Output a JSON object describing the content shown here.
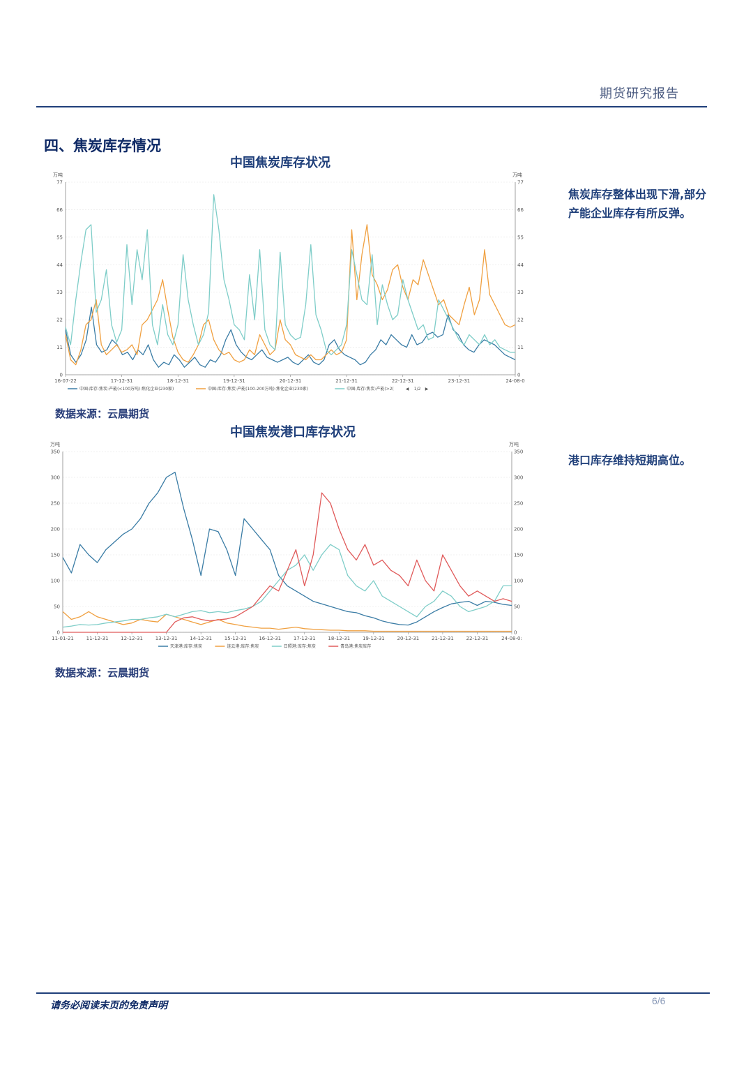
{
  "header": {
    "title": "期货研究报告"
  },
  "section": {
    "title": "四、焦炭库存情况"
  },
  "chart1": {
    "title": "中国焦炭库存状况",
    "source": "数据来源：云晨期货",
    "commentary": "焦炭库存整体出现下滑,部分产能企业库存有所反弹。",
    "pager": "1/2"
  },
  "chart2": {
    "title": "中国焦炭港口库存状况",
    "source": "数据来源：云晨期货",
    "commentary": "港口库存维持短期高位。"
  },
  "footer": {
    "disclaimer": "请务必阅读末页的免责声明",
    "page": "6/6"
  },
  "colors": {
    "blue": "#3a7ca5",
    "orange": "#f0a040",
    "teal": "#7ecdc8",
    "red": "#e05a5a"
  },
  "chart_data": [
    {
      "type": "line",
      "unit": "万吨",
      "ylim": [
        0,
        77
      ],
      "yticks": [
        0,
        11,
        22,
        33,
        44,
        55,
        66,
        77
      ],
      "xticks": [
        "16-07-22",
        "17-12-31",
        "18-12-31",
        "19-12-31",
        "20-12-31",
        "21-12-31",
        "22-12-31",
        "23-12-31",
        "24-08-0"
      ],
      "legend": [
        "中国:库存:焦炭:产能(<100万吨):焦化企业(230家)",
        "中国:库存:焦炭:产能(100-200万吨):焦化企业(230家)",
        "中国:库存:焦炭:产能(>2("
      ],
      "grid": true,
      "legend_position": "bottom",
      "series": [
        {
          "values": [
            18,
            8,
            5,
            8,
            14,
            27,
            12,
            9,
            10,
            14,
            12,
            8,
            9,
            6,
            10,
            8,
            12,
            6,
            3,
            5,
            4,
            8,
            6,
            3,
            5,
            7,
            4,
            3,
            6,
            5,
            8,
            14,
            18,
            12,
            9,
            7,
            6,
            8,
            10,
            7,
            6,
            5,
            6,
            7,
            5,
            4,
            6,
            8,
            5,
            4,
            6,
            12,
            14,
            10,
            8,
            7,
            6,
            4,
            5,
            8,
            10,
            14,
            12,
            16,
            14,
            12,
            11,
            16,
            12,
            13,
            16,
            17,
            15,
            16,
            24,
            18,
            16,
            12,
            10,
            9,
            12,
            14,
            13,
            12,
            10,
            8,
            7,
            6
          ]
        },
        {
          "values": [
            16,
            6,
            4,
            10,
            20,
            22,
            30,
            12,
            8,
            10,
            12,
            9,
            10,
            12,
            8,
            20,
            22,
            26,
            30,
            38,
            26,
            15,
            9,
            6,
            5,
            8,
            12,
            20,
            22,
            14,
            10,
            8,
            9,
            6,
            5,
            6,
            10,
            8,
            16,
            12,
            8,
            10,
            22,
            14,
            12,
            8,
            7,
            6,
            8,
            6,
            6,
            8,
            10,
            8,
            9,
            14,
            58,
            30,
            48,
            60,
            40,
            36,
            30,
            34,
            42,
            44,
            35,
            30,
            38,
            36,
            46,
            40,
            34,
            28,
            30,
            24,
            22,
            20,
            28,
            35,
            24,
            30,
            50,
            32,
            28,
            24,
            20,
            19,
            20
          ]
        },
        {
          "values": [
            19,
            12,
            30,
            45,
            58,
            60,
            25,
            30,
            42,
            20,
            13,
            18,
            52,
            28,
            50,
            38,
            58,
            20,
            12,
            28,
            16,
            12,
            20,
            48,
            30,
            20,
            12,
            16,
            25,
            72,
            58,
            38,
            30,
            20,
            18,
            14,
            40,
            22,
            50,
            18,
            12,
            10,
            49,
            20,
            16,
            14,
            15,
            28,
            52,
            24,
            18,
            10,
            8,
            10,
            12,
            20,
            50,
            40,
            30,
            28,
            48,
            20,
            36,
            28,
            22,
            24,
            38,
            30,
            24,
            18,
            20,
            14,
            15,
            30,
            26,
            22,
            18,
            14,
            12,
            16,
            14,
            12,
            16,
            12,
            14,
            11,
            10,
            9,
            9
          ]
        }
      ]
    },
    {
      "type": "line",
      "unit": "万吨",
      "ylim": [
        0,
        350
      ],
      "yticks": [
        0,
        50,
        100,
        150,
        200,
        250,
        300,
        350
      ],
      "xticks": [
        "11-01-21",
        "11-12-31",
        "12-12-31",
        "13-12-31",
        "14-12-31",
        "15-12-31",
        "16-12-31",
        "17-12-31",
        "18-12-31",
        "19-12-31",
        "20-12-31",
        "21-12-31",
        "22-12-31",
        "24-08-0:"
      ],
      "legend": [
        "天津港:库存:焦炭",
        "连云港:库存:焦炭",
        "日照港:库存:焦炭",
        "青岛港:焦炭库存"
      ],
      "grid": true,
      "legend_position": "bottom",
      "series": [
        {
          "values": [
            145,
            115,
            170,
            150,
            135,
            160,
            175,
            190,
            200,
            220,
            250,
            270,
            300,
            310,
            240,
            180,
            110,
            200,
            195,
            160,
            110,
            220,
            200,
            180,
            160,
            110,
            90,
            80,
            70,
            60,
            55,
            50,
            45,
            40,
            38,
            32,
            28,
            22,
            18,
            15,
            14,
            20,
            30,
            40,
            48,
            55,
            58,
            60,
            52,
            60,
            58,
            54,
            52
          ]
        },
        {
          "values": [
            40,
            25,
            30,
            40,
            30,
            25,
            20,
            15,
            18,
            25,
            22,
            20,
            35,
            30,
            25,
            20,
            15,
            20,
            25,
            18,
            15,
            12,
            10,
            8,
            8,
            6,
            8,
            10,
            7,
            6,
            5,
            4,
            4,
            3,
            3,
            3,
            2,
            2,
            2,
            2,
            2,
            2,
            2,
            2,
            2,
            2,
            2,
            2,
            2,
            2,
            2,
            2,
            2
          ]
        },
        {
          "values": [
            10,
            12,
            15,
            14,
            15,
            18,
            20,
            22,
            25,
            25,
            28,
            30,
            35,
            30,
            35,
            40,
            42,
            38,
            40,
            38,
            42,
            45,
            50,
            60,
            80,
            100,
            120,
            130,
            150,
            120,
            150,
            170,
            160,
            110,
            90,
            80,
            100,
            70,
            60,
            50,
            40,
            30,
            50,
            60,
            80,
            70,
            50,
            40,
            45,
            50,
            60,
            90,
            90
          ]
        },
        {
          "values": [
            0,
            0,
            0,
            0,
            0,
            0,
            0,
            0,
            0,
            0,
            0,
            0,
            0,
            20,
            28,
            30,
            25,
            22,
            24,
            26,
            30,
            40,
            50,
            70,
            90,
            80,
            120,
            160,
            90,
            150,
            270,
            250,
            200,
            160,
            140,
            170,
            130,
            140,
            120,
            110,
            90,
            140,
            100,
            80,
            150,
            120,
            90,
            70,
            80,
            70,
            60,
            65,
            60
          ]
        }
      ]
    }
  ]
}
